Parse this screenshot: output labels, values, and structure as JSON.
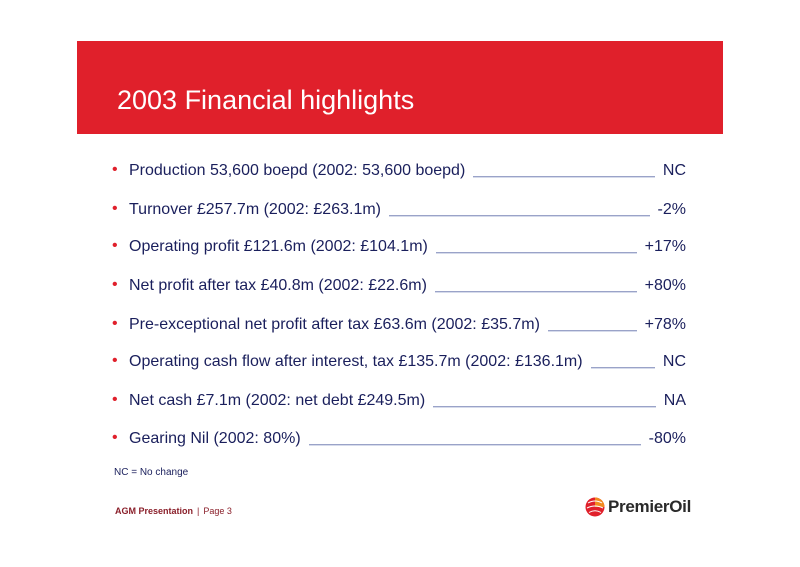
{
  "slide": {
    "title": "2003 Financial highlights",
    "bullet_glyph": "•",
    "items": [
      {
        "text": "Production 53,600 boepd (2002: 53,600 boepd)",
        "value": "NC"
      },
      {
        "text": "Turnover £257.7m (2002: £263.1m)",
        "value": "-2%"
      },
      {
        "text": "Operating profit £121.6m (2002: £104.1m)",
        "value": "+17%"
      },
      {
        "text": "Net profit after tax £40.8m (2002: £22.6m)",
        "value": "+80%"
      },
      {
        "text": "Pre-exceptional net profit after tax £63.6m (2002: £35.7m)",
        "value": "+78%"
      },
      {
        "text": "Operating cash flow after interest, tax £135.7m (2002: £136.1m)",
        "value": "NC"
      },
      {
        "text": "Net cash £7.1m (2002: net debt £249.5m)",
        "value": "NA"
      },
      {
        "text": "Gearing Nil (2002: 80%)",
        "value": "-80%"
      }
    ],
    "note": "NC = No change"
  },
  "footer": {
    "label": "AGM Presentation",
    "separator": "|",
    "page": "Page 3"
  },
  "logo": {
    "icon": "premier-oil-globe-icon",
    "wordmark": "PremierOil"
  },
  "colors": {
    "banner": "#e0202b",
    "text": "#1a1f5c",
    "footer": "#8a1f2a"
  }
}
